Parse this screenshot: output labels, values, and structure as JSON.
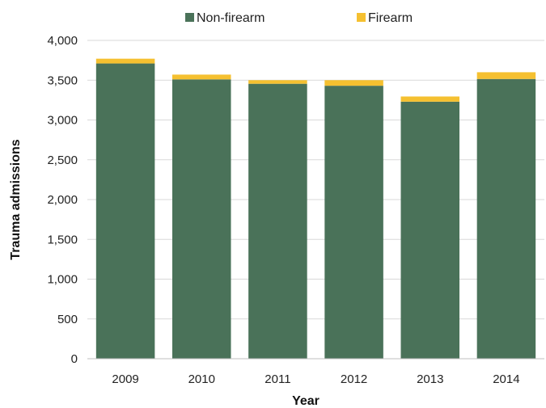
{
  "chart_data": {
    "type": "bar",
    "stacked": true,
    "categories": [
      "2009",
      "2010",
      "2011",
      "2012",
      "2013",
      "2014"
    ],
    "series": [
      {
        "name": "Non-firearm",
        "color": "#4a7259",
        "values": [
          3710,
          3510,
          3455,
          3430,
          3230,
          3515
        ]
      },
      {
        "name": "Firearm",
        "color": "#f5c030",
        "values": [
          60,
          60,
          45,
          70,
          65,
          85
        ]
      }
    ],
    "xlabel": "Year",
    "ylabel": "Trauma admissions",
    "ylim": [
      0,
      4000
    ],
    "yticks": [
      0,
      500,
      1000,
      1500,
      2000,
      2500,
      3000,
      3500,
      4000
    ],
    "ytick_labels": [
      "0",
      "500",
      "1,000",
      "1,500",
      "2,000",
      "2,500",
      "3,000",
      "3,500",
      "4,000"
    ],
    "grid": "horizontal",
    "legend_position": "top-center"
  }
}
